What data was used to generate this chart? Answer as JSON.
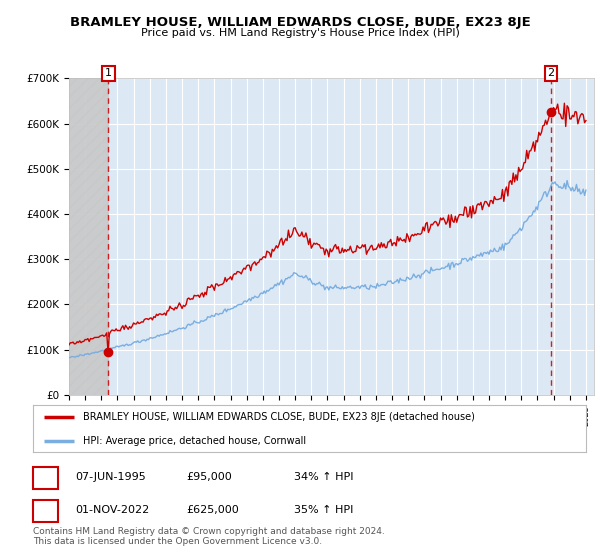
{
  "title": "BRAMLEY HOUSE, WILLIAM EDWARDS CLOSE, BUDE, EX23 8JE",
  "subtitle": "Price paid vs. HM Land Registry's House Price Index (HPI)",
  "ylim": [
    0,
    700000
  ],
  "yticks": [
    0,
    100000,
    200000,
    300000,
    400000,
    500000,
    600000,
    700000
  ],
  "ytick_labels": [
    "£0",
    "£100K",
    "£200K",
    "£300K",
    "£400K",
    "£500K",
    "£600K",
    "£700K"
  ],
  "xlim_start": 1993.0,
  "xlim_end": 2025.5,
  "bg_color": "#ffffff",
  "plot_bg_color": "#dce9f5",
  "grid_color": "#ffffff",
  "red_color": "#cc0000",
  "blue_color": "#7aade0",
  "point1_year": 1995.44,
  "point1_price": 95000,
  "point1_label": "1",
  "point2_year": 2022.83,
  "point2_price": 625000,
  "point2_label": "2",
  "legend_line1": "BRAMLEY HOUSE, WILLIAM EDWARDS CLOSE, BUDE, EX23 8JE (detached house)",
  "legend_line2": "HPI: Average price, detached house, Cornwall",
  "table_row1": [
    "1",
    "07-JUN-1995",
    "£95,000",
    "34% ↑ HPI"
  ],
  "table_row2": [
    "2",
    "01-NOV-2022",
    "£625,000",
    "35% ↑ HPI"
  ],
  "footer": "Contains HM Land Registry data © Crown copyright and database right 2024.\nThis data is licensed under the Open Government Licence v3.0.",
  "hatch_end_year": 1995.44
}
